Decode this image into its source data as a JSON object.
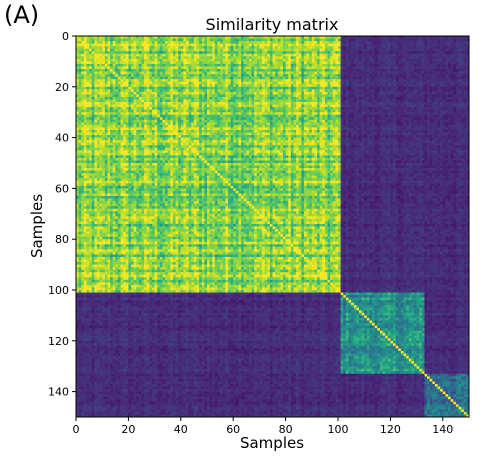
{
  "panel_label": "(A)",
  "chart_data": {
    "type": "heatmap",
    "title": "Similarity matrix",
    "xlabel": "Samples",
    "ylabel": "Samples",
    "n": 150,
    "xlim": [
      0,
      150
    ],
    "ylim": [
      150,
      0
    ],
    "x_ticks": [
      0,
      20,
      40,
      60,
      80,
      100,
      120,
      140
    ],
    "y_ticks": [
      0,
      20,
      40,
      60,
      80,
      100,
      120,
      140
    ],
    "clusters": [
      {
        "start": 0,
        "end": 101,
        "mean_similarity": 0.75
      },
      {
        "start": 101,
        "end": 133,
        "mean_similarity": 0.45
      },
      {
        "start": 133,
        "end": 150,
        "mean_similarity": 0.35
      }
    ],
    "off_cluster_mean_similarity": 0.1,
    "diagonal_value": 1.0,
    "value_range": [
      0,
      1
    ],
    "colormap": [
      "#440154",
      "#482878",
      "#3e4989",
      "#31688e",
      "#26828e",
      "#1f9e89",
      "#35b779",
      "#6ece58",
      "#b5de2b",
      "#fde725"
    ],
    "grid": false,
    "legend": "none"
  }
}
